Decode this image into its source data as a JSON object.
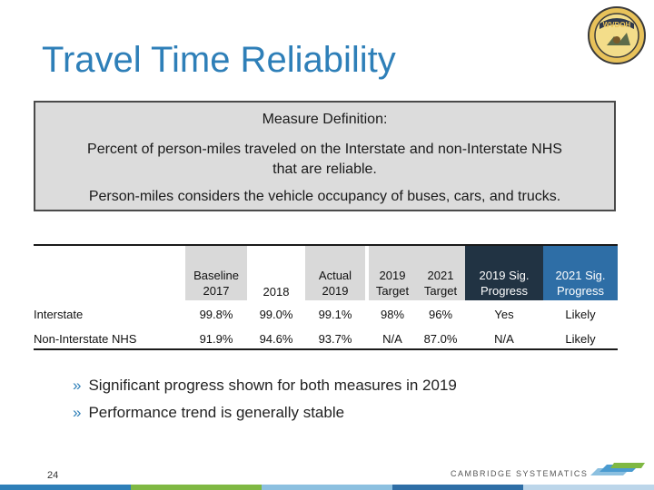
{
  "title": "Travel Time Reliability",
  "logo_text": "WVDOH",
  "definition": {
    "heading": "Measure Definition:",
    "line1": "Percent of person-miles traveled on the Interstate and non-Interstate NHS",
    "line2": "that are reliable.",
    "line3": "Person-miles considers the vehicle occupancy of buses, cars, and trucks."
  },
  "table": {
    "headers": {
      "baseline_l1": "Baseline",
      "baseline_l2": "2017",
      "y2018": "2018",
      "actual_l1": "Actual",
      "actual_l2": "2019",
      "t2019_l1": "2019",
      "t2019_l2": "Target",
      "t2021_l1": "2021",
      "t2021_l2": "Target",
      "sig2019_l1": "2019 Sig.",
      "sig2019_l2": "Progress",
      "sig2021_l1": "2021 Sig.",
      "sig2021_l2": "Progress"
    },
    "rows": [
      {
        "label": "Interstate",
        "baseline": "99.8%",
        "y2018": "99.0%",
        "actual": "99.1%",
        "t2019": "98%",
        "t2021": "96%",
        "sig2019": "Yes",
        "sig2021": "Likely"
      },
      {
        "label": "Non-Interstate NHS",
        "baseline": "91.9%",
        "y2018": "94.6%",
        "actual": "93.7%",
        "t2019": "N/A",
        "t2021": "87.0%",
        "sig2019": "N/A",
        "sig2021": "Likely"
      }
    ]
  },
  "bullets": {
    "b1": "Significant progress shown for both measures in 2019",
    "b2": "Performance trend is generally stable",
    "marker": "»"
  },
  "footer": {
    "page": "24",
    "brand": "CAMBRIDGE SYSTEMATICS"
  },
  "colors": {
    "title": "#2e7fb8",
    "header_dark": "#213343",
    "header_blue": "#2e6ea6",
    "header_gray": "#d9d9d9"
  }
}
